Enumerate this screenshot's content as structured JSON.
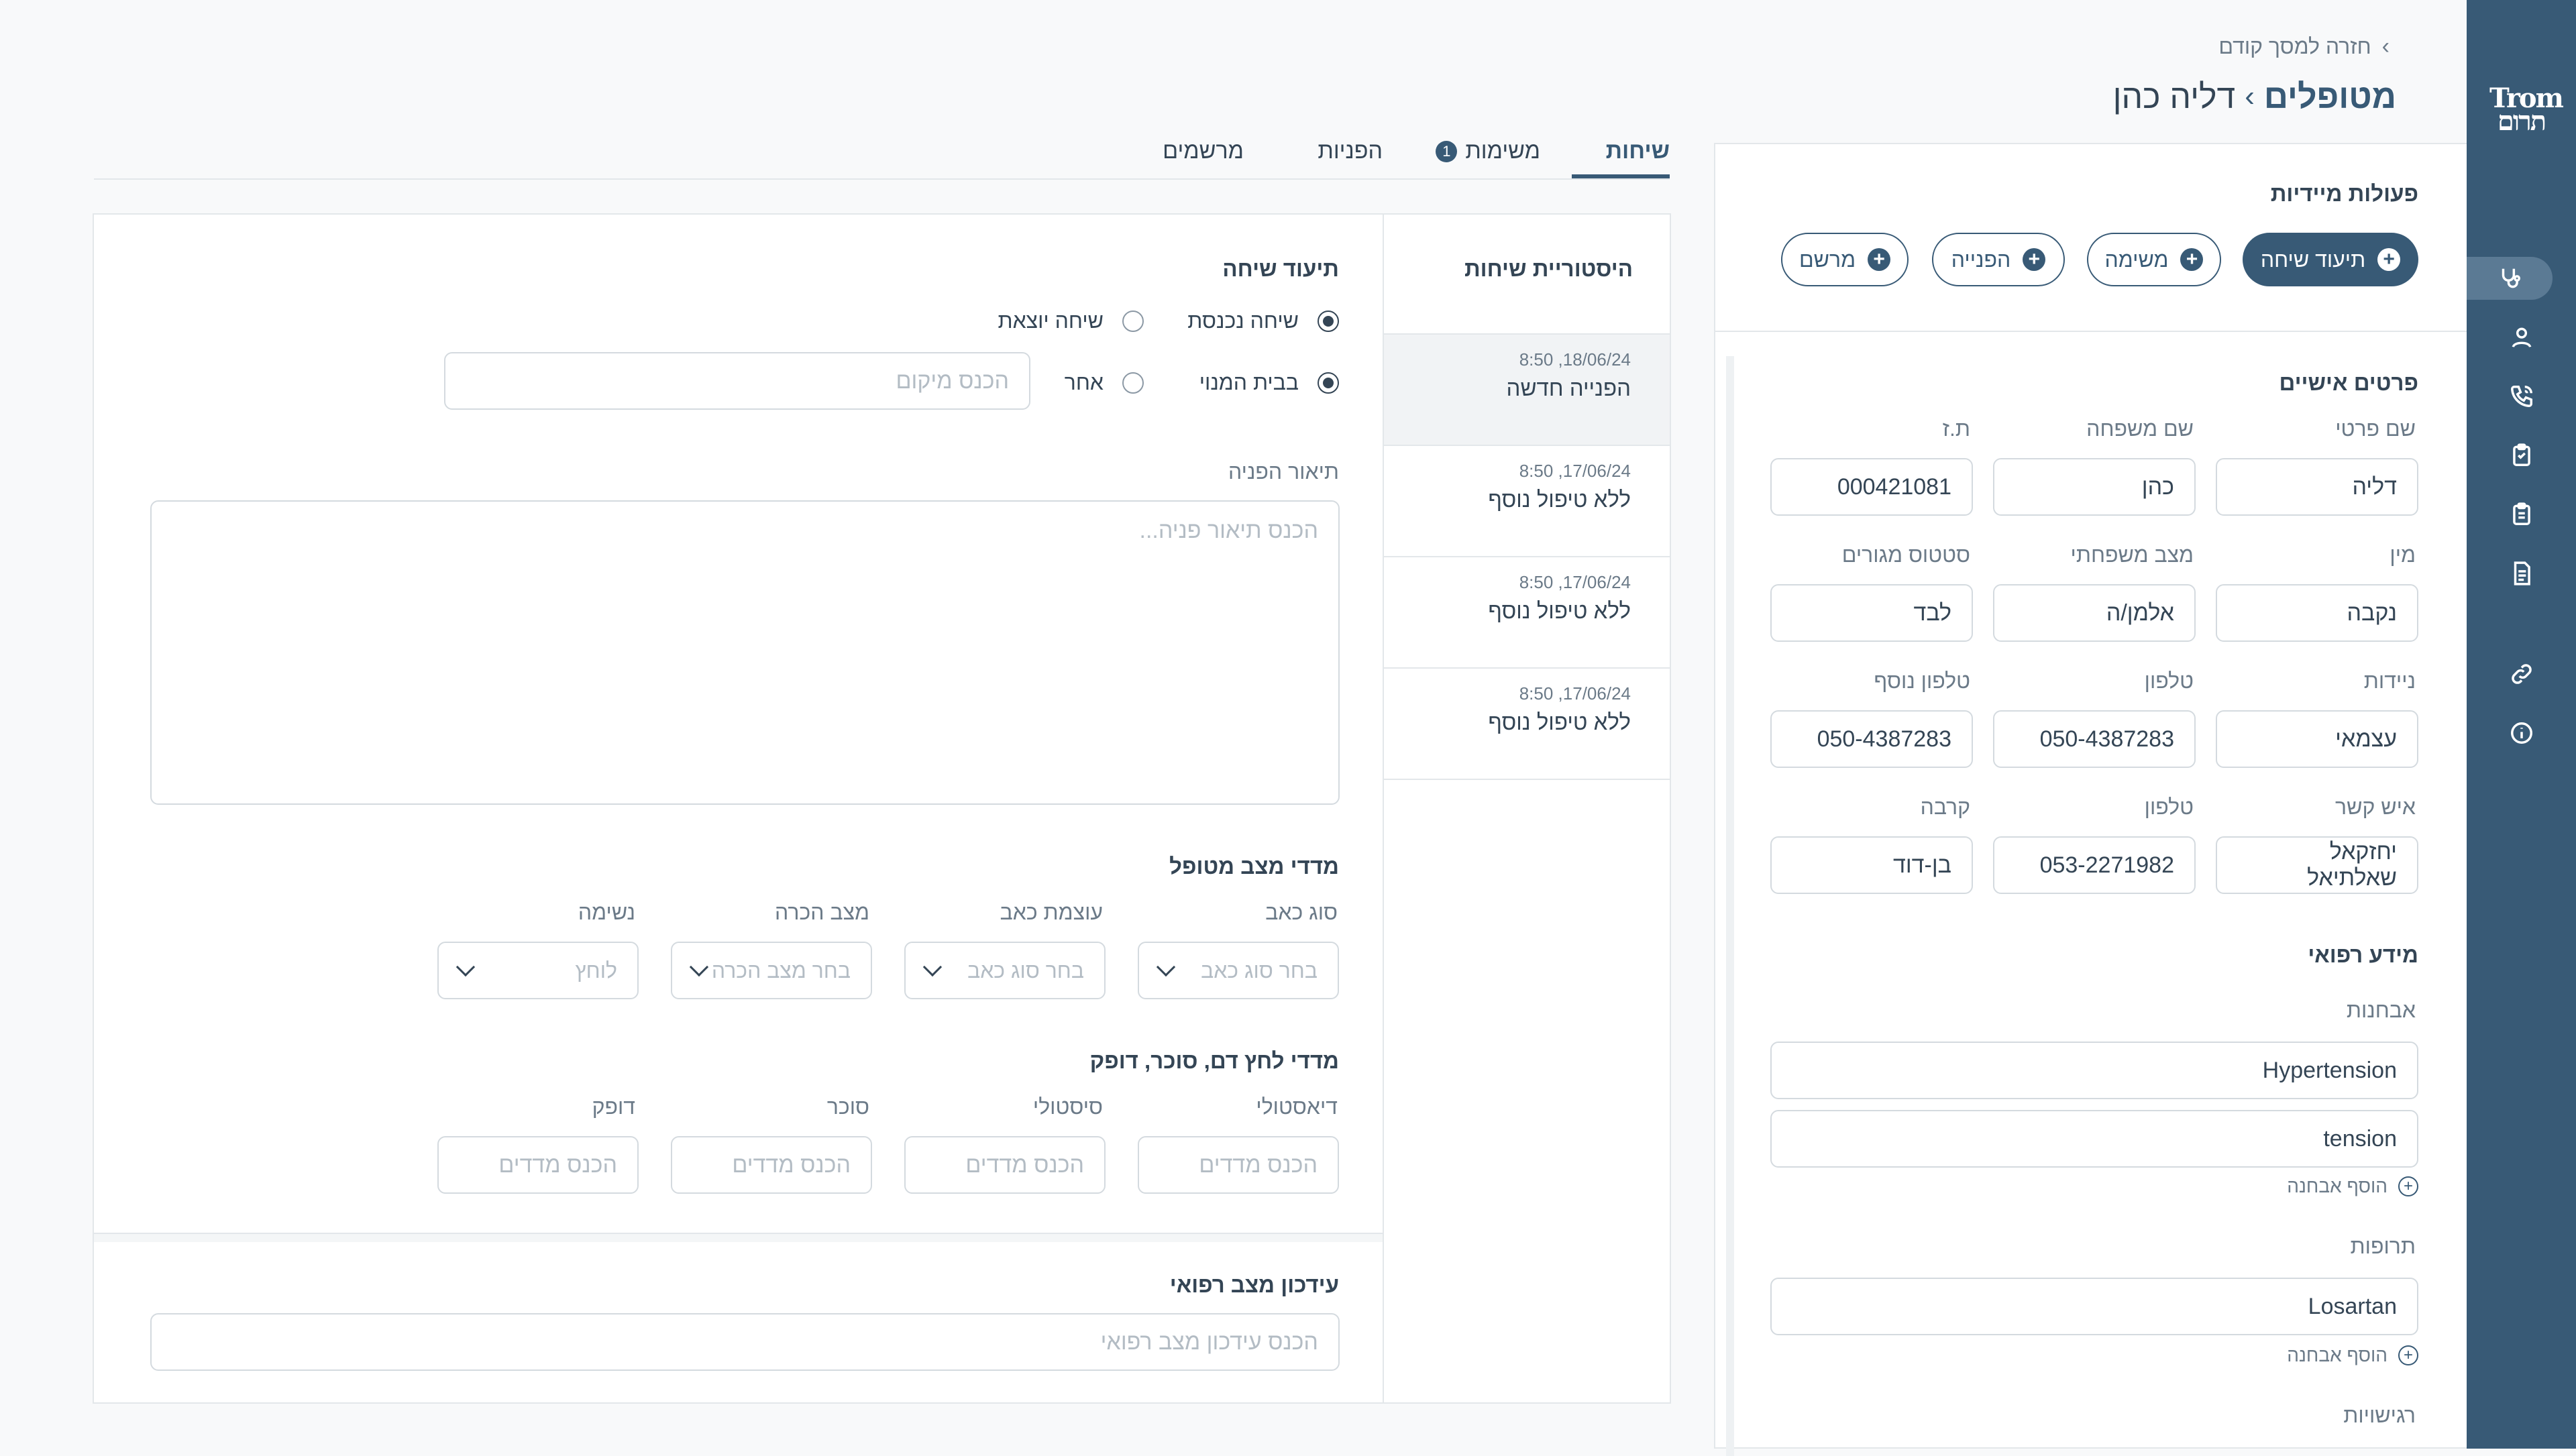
{
  "nav": {
    "back_label": "חזרה למסך קודם",
    "breadcrumb_root": "מטופלים",
    "breadcrumb_separator": "›",
    "breadcrumb_current": "דליה כהן",
    "logo_line1": "Trom",
    "logo_line2": "תרום"
  },
  "quick_actions": {
    "title": "פעולות מיידיות",
    "buttons": [
      "תיעוד שיחה",
      "משימה",
      "הפנייה",
      "מרשם"
    ]
  },
  "tabs": [
    {
      "label": "שיחות",
      "active": true
    },
    {
      "label": "משימות",
      "badge": "1"
    },
    {
      "label": "הפניות"
    },
    {
      "label": "מרשמים"
    }
  ],
  "personal": {
    "title": "פרטים אישיים",
    "fields": [
      {
        "label": "שם פרטי",
        "value": "דליה"
      },
      {
        "label": "שם משפחה",
        "value": "כהן"
      },
      {
        "label": "ת.ז",
        "value": "000421081"
      },
      {
        "label": "מין",
        "value": "נקבה"
      },
      {
        "label": "מצב משפחתי",
        "value": "אלמן/ה"
      },
      {
        "label": "סטטוס מגורים",
        "value": "לבד"
      },
      {
        "label": "ניידות",
        "value": "עצמאי"
      },
      {
        "label": "טלפון",
        "value": "050-4387283"
      },
      {
        "label": "טלפון נוסף",
        "value": "050-4387283"
      },
      {
        "label": "איש קשר",
        "value": "יחזקאל שאלתיאל"
      },
      {
        "label": "טלפון",
        "value": "053-2271982"
      },
      {
        "label": "קרבה",
        "value": "בן-דוד"
      }
    ]
  },
  "medical": {
    "title": "מידע רפואי",
    "diagnoses_label": "אבחנות",
    "diagnoses": [
      "Hypertension",
      "tension"
    ],
    "add_diagnosis": "הוסף אבחנה",
    "meds_label": "תרופות",
    "meds": [
      "Losartan"
    ],
    "add_med": "הוסף אבחנה",
    "sensitivities_label": "רגישויות"
  },
  "history": {
    "title": "היסטוריית שיחות",
    "items": [
      {
        "date": "18/06/24, 8:50",
        "text": "הפנייה חדשה",
        "active": true
      },
      {
        "date": "17/06/24, 8:50",
        "text": "ללא טיפול נוסף"
      },
      {
        "date": "17/06/24, 8:50",
        "text": "ללא טיפול נוסף"
      },
      {
        "date": "17/06/24, 8:50",
        "text": "ללא טיפול נוסף"
      }
    ]
  },
  "call_doc": {
    "title": "תיעוד שיחה",
    "incoming": "שיחה נכנסת",
    "outgoing": "שיחה יוצאת",
    "at_home": "בבית המנוי",
    "other": "אחר",
    "location_placeholder": "הכנס מיקום",
    "description_label": "תיאור הפניה",
    "description_placeholder": "הכנס תיאור פניה..."
  },
  "patient_metrics": {
    "title": "מדדי מצב מטופל",
    "fields": [
      {
        "label": "סוג כאב",
        "placeholder": "בחר סוג כאב"
      },
      {
        "label": "עוצמת כאב",
        "placeholder": "בחר סוג כאב"
      },
      {
        "label": "מצב הכרה",
        "placeholder": "בחר מצב הכרה"
      },
      {
        "label": "נשימה",
        "placeholder": "לוחץ"
      }
    ]
  },
  "vitals": {
    "title": "מדדי לחץ דם, סוכר, דופק",
    "fields": [
      {
        "label": "דיאסטולי",
        "placeholder": "הכנס מדדים"
      },
      {
        "label": "סיסטולי",
        "placeholder": "הכנס מדדים"
      },
      {
        "label": "סוכר",
        "placeholder": "הכנס מדדים"
      },
      {
        "label": "דופק",
        "placeholder": "הכנס מדדים"
      }
    ]
  },
  "medical_update": {
    "title": "עידכון מצב רפואי",
    "placeholder": "הכנס עידכון מצב רפואי"
  }
}
